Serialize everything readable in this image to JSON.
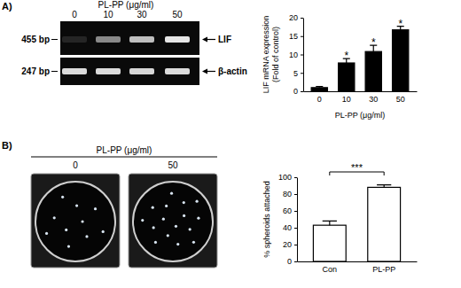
{
  "chart_data": [
    {
      "type": "bar",
      "categories": [
        "0",
        "10",
        "30",
        "50"
      ],
      "values": [
        1,
        7.7,
        10.8,
        16.7
      ],
      "errors": [
        0.3,
        1.2,
        1.7,
        1.0
      ],
      "significance": [
        null,
        "*",
        "*",
        "*"
      ],
      "color": "#000000",
      "ylim": [
        0,
        20
      ],
      "yticks": [
        0,
        5,
        10,
        15,
        20
      ],
      "ylabel": [
        "LIF mRNA expression",
        "(Fold of control)"
      ],
      "xlabel": "PL-PP (μg/ml)"
    },
    {
      "type": "bar",
      "categories": [
        "Con",
        "PL-PP"
      ],
      "values": [
        43,
        88
      ],
      "errors": [
        5,
        3
      ],
      "color": "#ffffff",
      "ylim": [
        0,
        100
      ],
      "yticks": [
        0,
        20,
        40,
        60,
        80,
        100
      ],
      "ylabel": "% spheroids attached",
      "annotations": [
        {
          "text": "***",
          "categories": [
            "Con",
            "PL-PP"
          ]
        }
      ]
    }
  ],
  "figure": {
    "panel_labels": [
      "A)",
      "B)"
    ],
    "gel": {
      "title": "PL-PP (μg/ml)",
      "lanes": [
        "0",
        "10",
        "30",
        "50"
      ],
      "bands": [
        {
          "size": "455 bp",
          "name": "LIF"
        },
        {
          "size": "247 bp",
          "name": "β-actin"
        }
      ]
    },
    "wells": {
      "title": "PL-PP (μg/ml)",
      "labels": [
        "0",
        "50"
      ]
    }
  }
}
